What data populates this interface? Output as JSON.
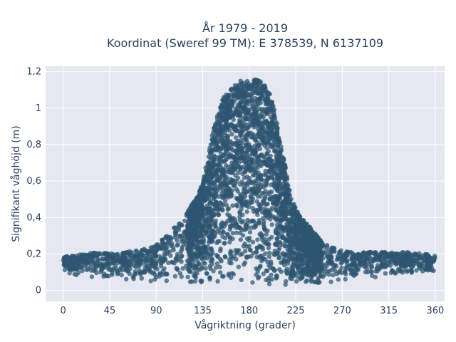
{
  "chart_data": {
    "type": "scatter",
    "title_line1": "År 1979 - 2019",
    "title_line2": "Koordinat (Sweref 99 TM): E 378539, N 6137109",
    "xlabel": "Vågriktning (grader)",
    "ylabel": "Signifikant våghöjd (m)",
    "xlim": [
      -17,
      369
    ],
    "ylim": [
      -0.06,
      1.23
    ],
    "xticks": [
      0,
      45,
      90,
      135,
      180,
      225,
      270,
      315,
      360
    ],
    "xtick_labels": [
      "0",
      "45",
      "90",
      "135",
      "180",
      "225",
      "270",
      "315",
      "360"
    ],
    "yticks": [
      0,
      0.2,
      0.4,
      0.6,
      0.8,
      1,
      1.2
    ],
    "ytick_labels": [
      "0",
      "0,2",
      "0,4",
      "0,6",
      "0,8",
      "1",
      "1,2"
    ],
    "grid": true,
    "marker_color": "#2e5570",
    "plot_bg": "#e5e8f0",
    "envelope": {
      "direction": [
        0,
        10,
        20,
        30,
        40,
        50,
        60,
        70,
        80,
        90,
        100,
        110,
        120,
        130,
        135,
        140,
        145,
        150,
        155,
        160,
        165,
        170,
        175,
        180,
        185,
        190,
        195,
        200,
        205,
        210,
        215,
        220,
        225,
        230,
        240,
        250,
        260,
        270,
        280,
        290,
        300,
        310,
        320,
        330,
        340,
        350,
        360
      ],
      "max_height": [
        0.19,
        0.19,
        0.2,
        0.21,
        0.21,
        0.2,
        0.21,
        0.22,
        0.23,
        0.25,
        0.3,
        0.36,
        0.43,
        0.52,
        0.6,
        0.73,
        0.88,
        0.98,
        1.06,
        1.1,
        1.13,
        1.15,
        1.15,
        1.15,
        1.16,
        1.15,
        1.13,
        1.08,
        0.98,
        0.82,
        0.68,
        0.52,
        0.45,
        0.4,
        0.34,
        0.27,
        0.24,
        0.22,
        0.21,
        0.21,
        0.21,
        0.21,
        0.21,
        0.21,
        0.21,
        0.2,
        0.19
      ],
      "min_height": [
        0.09,
        0.08,
        0.08,
        0.07,
        0.07,
        0.06,
        0.05,
        0.04,
        0.04,
        0.04,
        0.04,
        0.03,
        0.03,
        0.03,
        0.03,
        0.02,
        0.02,
        0.02,
        0.02,
        0.02,
        0.01,
        0.01,
        0.01,
        0.01,
        0.01,
        0.01,
        0.01,
        0.01,
        0.02,
        0.02,
        0.02,
        0.02,
        0.02,
        0.02,
        0.03,
        0.03,
        0.04,
        0.05,
        0.06,
        0.07,
        0.07,
        0.08,
        0.08,
        0.08,
        0.09,
        0.09,
        0.09
      ]
    }
  }
}
